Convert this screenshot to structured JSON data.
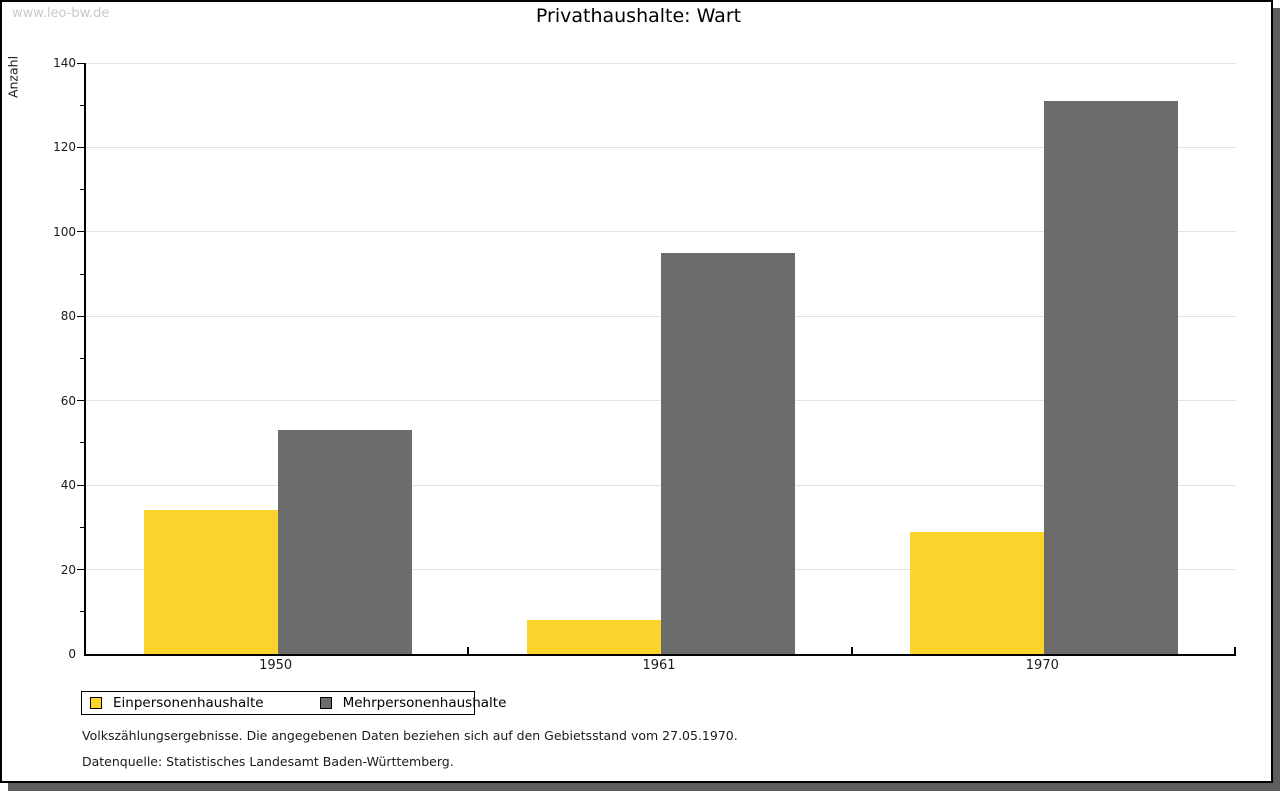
{
  "watermark": "www.leo-bw.de",
  "footnotes": [
    "Volkszählungsergebnisse. Die angegebenen Daten beziehen sich auf den Gebietsstand vom 27.05.1970.",
    "Datenquelle: Statistisches Landesamt Baden-Württemberg."
  ],
  "colors": {
    "series1": "#FCD32B",
    "series2": "#6C6C6C",
    "grid": "#E2E2E2",
    "axis": "#000000",
    "shadow": "#5E5E5E",
    "watermark_text": "#C9C9C9"
  },
  "chart_data": {
    "type": "bar",
    "title": "Privathaushalte: Wart",
    "xlabel": "",
    "ylabel": "Anzahl",
    "categories": [
      "1950",
      "1961",
      "1970"
    ],
    "series": [
      {
        "name": "Einpersonenhaushalte",
        "color": "#FCD32B",
        "values": [
          34,
          8,
          29
        ]
      },
      {
        "name": "Mehrpersonenhaushalte",
        "color": "#6C6C6C",
        "values": [
          53,
          95,
          131
        ]
      }
    ],
    "ylim": [
      0,
      140
    ],
    "ytick_major_step": 20,
    "ytick_minor_step": 10,
    "grid": "horizontal",
    "legend_position": "bottom-left"
  }
}
